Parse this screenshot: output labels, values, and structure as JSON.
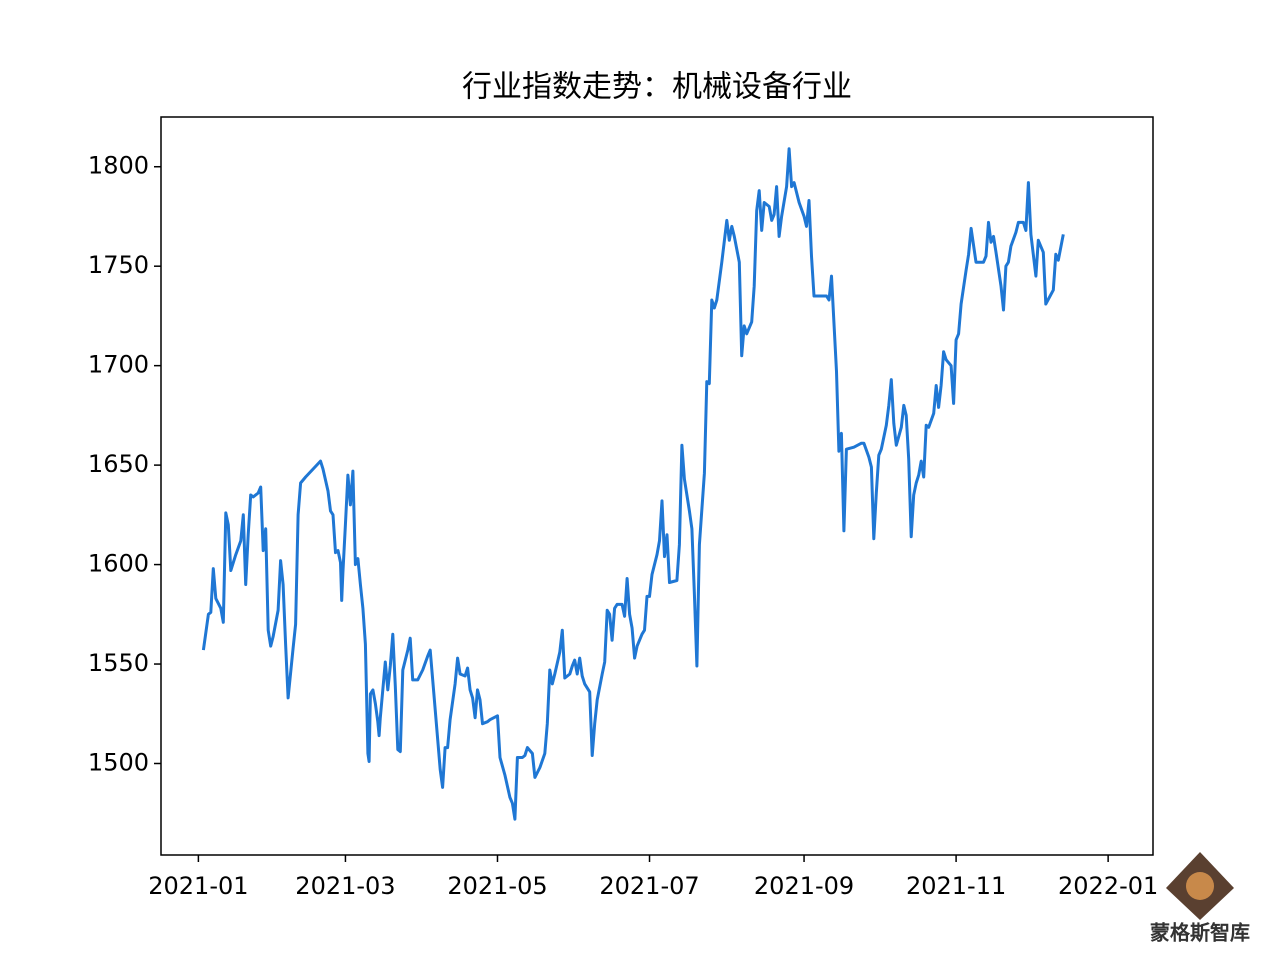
{
  "chart_data": {
    "type": "line",
    "title": "行业指数走势：机械设备行业",
    "watermark": "蒙格斯智库",
    "xlim": [
      -15,
      383
    ],
    "ylim": [
      1454,
      1825
    ],
    "xticks": [
      {
        "value": 0,
        "label": "2021-01"
      },
      {
        "value": 59,
        "label": "2021-03"
      },
      {
        "value": 120,
        "label": "2021-05"
      },
      {
        "value": 181,
        "label": "2021-07"
      },
      {
        "value": 243,
        "label": "2021-09"
      },
      {
        "value": 304,
        "label": "2021-11"
      },
      {
        "value": 365,
        "label": "2022-01"
      }
    ],
    "yticks": [
      1500,
      1550,
      1600,
      1650,
      1700,
      1750,
      1800
    ],
    "series": [
      {
        "color": "#1f77d4",
        "x": [
          2,
          4,
          5,
          6,
          7,
          9,
          10,
          11,
          12,
          13,
          15,
          17,
          18,
          19,
          20,
          21,
          22,
          24,
          25,
          26,
          27,
          28,
          29,
          30,
          32,
          33,
          34,
          35,
          36,
          38,
          39,
          40,
          41,
          43,
          46,
          49,
          50,
          52,
          53,
          54,
          55,
          56,
          57,
          57.5,
          58,
          59,
          60,
          61,
          62,
          63,
          64,
          65,
          66,
          67,
          68,
          68.5,
          69,
          70,
          71,
          72,
          72.5,
          73,
          75,
          76,
          77,
          78,
          79,
          80,
          81,
          82,
          84,
          85,
          86,
          88,
          90,
          92,
          93,
          94,
          96,
          97,
          98,
          99,
          100,
          101,
          103,
          104,
          105,
          107,
          108,
          109,
          110,
          111,
          112,
          113,
          114,
          116,
          117,
          120,
          121,
          123,
          125,
          126,
          127,
          128,
          130,
          131,
          132,
          134,
          135,
          137,
          139,
          140,
          141,
          142,
          143,
          145,
          146,
          147,
          149,
          150,
          151,
          152,
          153,
          154,
          155,
          156,
          157,
          158,
          159,
          160,
          162,
          163,
          164,
          165,
          166,
          167,
          168,
          170,
          171,
          172,
          173,
          174,
          175,
          176,
          178,
          179,
          180,
          181,
          182,
          184,
          185,
          186,
          187,
          188,
          189,
          192,
          193,
          194,
          195,
          197,
          198,
          199,
          200,
          201,
          203,
          204,
          205,
          206,
          207,
          208,
          210,
          212,
          213,
          214,
          215,
          217,
          218,
          219,
          220,
          222,
          223,
          224,
          225,
          226,
          227,
          229,
          230,
          231,
          232,
          233,
          234,
          236,
          237,
          238,
          239,
          241,
          243,
          244,
          245,
          246,
          247,
          250,
          252,
          253,
          254,
          256,
          257,
          258,
          259,
          260,
          263,
          266,
          267,
          269,
          270,
          271,
          272,
          273,
          274,
          276,
          277,
          278,
          279,
          280,
          282,
          283,
          284,
          285,
          286,
          287,
          288,
          289,
          290,
          291,
          292,
          293,
          295,
          296,
          297,
          298,
          299,
          300,
          302,
          303,
          304,
          305,
          306,
          308,
          309,
          310,
          312,
          315,
          316,
          317,
          318,
          319,
          320,
          322,
          323,
          324,
          325,
          326,
          328,
          329,
          331,
          332,
          333,
          334,
          336,
          337,
          338,
          339,
          340,
          343,
          344,
          345,
          347
        ],
        "values": [
          1557,
          1575,
          1576,
          1598,
          1583,
          1578,
          1571,
          1626,
          1620,
          1597,
          1605,
          1612,
          1625,
          1590,
          1615,
          1635,
          1634,
          1636,
          1639,
          1607,
          1618,
          1567,
          1559,
          1564,
          1577,
          1602,
          1590,
          1560,
          1533,
          1558,
          1570,
          1625,
          1641,
          1644,
          1648,
          1652,
          1648,
          1637,
          1627,
          1625,
          1606,
          1607,
          1601,
          1582,
          1596,
          1620,
          1645,
          1630,
          1647,
          1600,
          1603,
          1590,
          1578,
          1560,
          1505,
          1501,
          1535,
          1537,
          1530,
          1521,
          1514,
          1523,
          1551,
          1537,
          1549,
          1565,
          1539,
          1507,
          1506,
          1547,
          1557,
          1563,
          1542,
          1542,
          1547,
          1554,
          1557,
          1542,
          1512,
          1497,
          1488,
          1508,
          1508,
          1522,
          1540,
          1553,
          1545,
          1544,
          1548,
          1537,
          1533,
          1523,
          1537,
          1532,
          1520,
          1521,
          1522,
          1524,
          1503,
          1494,
          1483,
          1480,
          1472,
          1503,
          1503,
          1504,
          1508,
          1505,
          1493,
          1498,
          1505,
          1520,
          1547,
          1540,
          1545,
          1556,
          1567,
          1543,
          1545,
          1549,
          1552,
          1545,
          1553,
          1544,
          1540,
          1538,
          1536,
          1504,
          1520,
          1532,
          1545,
          1551,
          1577,
          1575,
          1562,
          1578,
          1580,
          1580,
          1574,
          1593,
          1575,
          1568,
          1553,
          1559,
          1565,
          1567,
          1584,
          1584,
          1595,
          1605,
          1612,
          1632,
          1604,
          1615,
          1591,
          1592,
          1610,
          1660,
          1643,
          1627,
          1618,
          1585,
          1549,
          1610,
          1646,
          1692,
          1691,
          1733,
          1729,
          1733,
          1752,
          1773,
          1763,
          1770,
          1765,
          1752,
          1705,
          1720,
          1716,
          1722,
          1740,
          1778,
          1788,
          1768,
          1782,
          1780,
          1773,
          1776,
          1790,
          1765,
          1775,
          1790,
          1809,
          1790,
          1792,
          1782,
          1775,
          1770,
          1783,
          1755,
          1735,
          1735,
          1735,
          1733,
          1745,
          1697,
          1657,
          1666,
          1617,
          1658,
          1659,
          1661,
          1661,
          1654,
          1649,
          1613,
          1636,
          1655,
          1658,
          1670,
          1680,
          1693,
          1671,
          1660,
          1669,
          1680,
          1675,
          1653,
          1614,
          1635,
          1641,
          1645,
          1652,
          1644,
          1670,
          1669,
          1676,
          1690,
          1679,
          1690,
          1707,
          1703,
          1700,
          1681,
          1713,
          1716,
          1731,
          1748,
          1756,
          1769,
          1752,
          1752,
          1755,
          1772,
          1762,
          1765,
          1757,
          1740,
          1728,
          1750,
          1752,
          1760,
          1767,
          1772,
          1772,
          1768,
          1792,
          1766,
          1745,
          1763,
          1760,
          1757,
          1731,
          1738,
          1756,
          1753,
          1766
        ]
      }
    ]
  }
}
